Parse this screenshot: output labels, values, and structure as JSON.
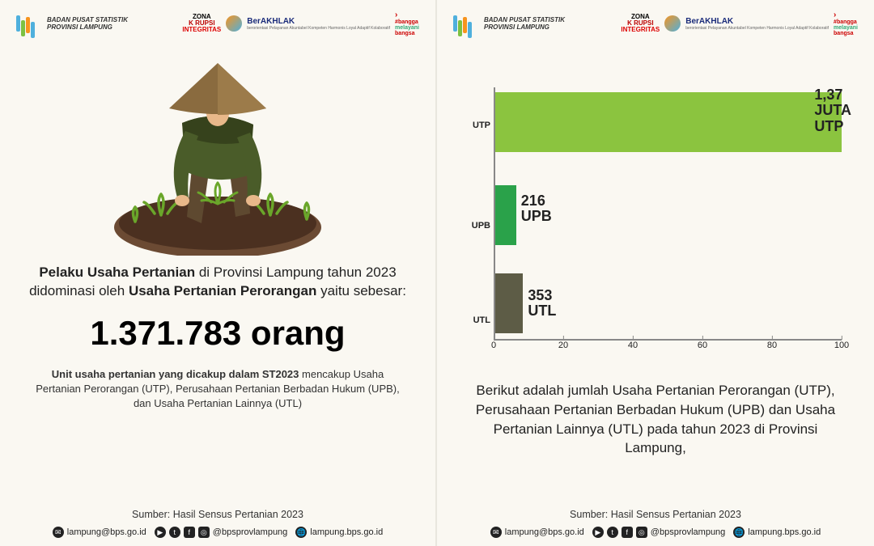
{
  "header": {
    "org_line1": "BADAN PUSAT STATISTIK",
    "org_line2": "PROVINSI LAMPUNG",
    "zona_top": "ZONA",
    "zona_mid": "K  RUPSI",
    "zona_bot": "INTEGRITAS",
    "berakhlak_label": "BerAKHLAK",
    "berakhlak_sub": "berorientasi Pelayanan Akuntabel Kompeten Harmonis Loyal Adaptif Kolaboratif",
    "bangga_l1": "bangga",
    "bangga_l2": "melayani",
    "bangga_l3": "bangsa"
  },
  "left": {
    "para1_a": "Pelaku Usaha Pertanian",
    "para1_b": " di Provinsi Lampung tahun 2023 didominasi oleh ",
    "para1_c": "Usaha Pertanian Perorangan",
    "para1_d": " yaitu sebesar:",
    "bignum": "1.371.783 orang",
    "para2_a": "Unit usaha pertanian yang dicakup dalam ST2023",
    "para2_b": " mencakup Usaha Pertanian Perorangan (UTP), Perusahaan Pertanian Berbadan Hukum (UPB), dan Usaha Pertanian Lainnya (UTL)",
    "illustration_colors": {
      "hat": "#8a6b3f",
      "shirt": "#4a5c29",
      "shirt_dark": "#36421c",
      "pants": "#5e4930",
      "skin": "#e8b88a",
      "soil": "#4b3020",
      "soil_light": "#6b4a33",
      "plant": "#6aa62a"
    }
  },
  "right": {
    "desc": "Berikut adalah jumlah Usaha Pertanian Perorangan (UTP), Perusahaan Pertanian Berbadan Hukum (UPB) dan Usaha Pertanian Lainnya (UTL) pada tahun 2023 di Provinsi Lampung,"
  },
  "chart": {
    "type": "bar-horizontal",
    "xlim": [
      0,
      100
    ],
    "xticks": [
      0,
      20,
      40,
      60,
      80,
      100
    ],
    "axis_color": "#888888",
    "tick_fontsize": 11,
    "label_fontsize": 18,
    "background_color": "#faf8f2",
    "bars": [
      {
        "label": "UTP",
        "pct": 100,
        "color": "#8bc43f",
        "value_line1": "1,37",
        "value_line2": "JUTA",
        "value_line3": "UTP",
        "top_pct": 2
      },
      {
        "label": "UPB",
        "pct": 6,
        "color": "#2aa24a",
        "value_line1": "216",
        "value_line2": "UPB",
        "value_line3": "",
        "top_pct": 39
      },
      {
        "label": "UTL",
        "pct": 8,
        "color": "#5d5c46",
        "value_line1": "353",
        "value_line2": "UTL",
        "value_line3": "",
        "top_pct": 74
      }
    ]
  },
  "source": "Sumber: Hasil Sensus Pertanian 2023",
  "footer": {
    "email": "lampung@bps.go.id",
    "social": "@bpsprovlampung",
    "web": "lampung.bps.go.id"
  }
}
